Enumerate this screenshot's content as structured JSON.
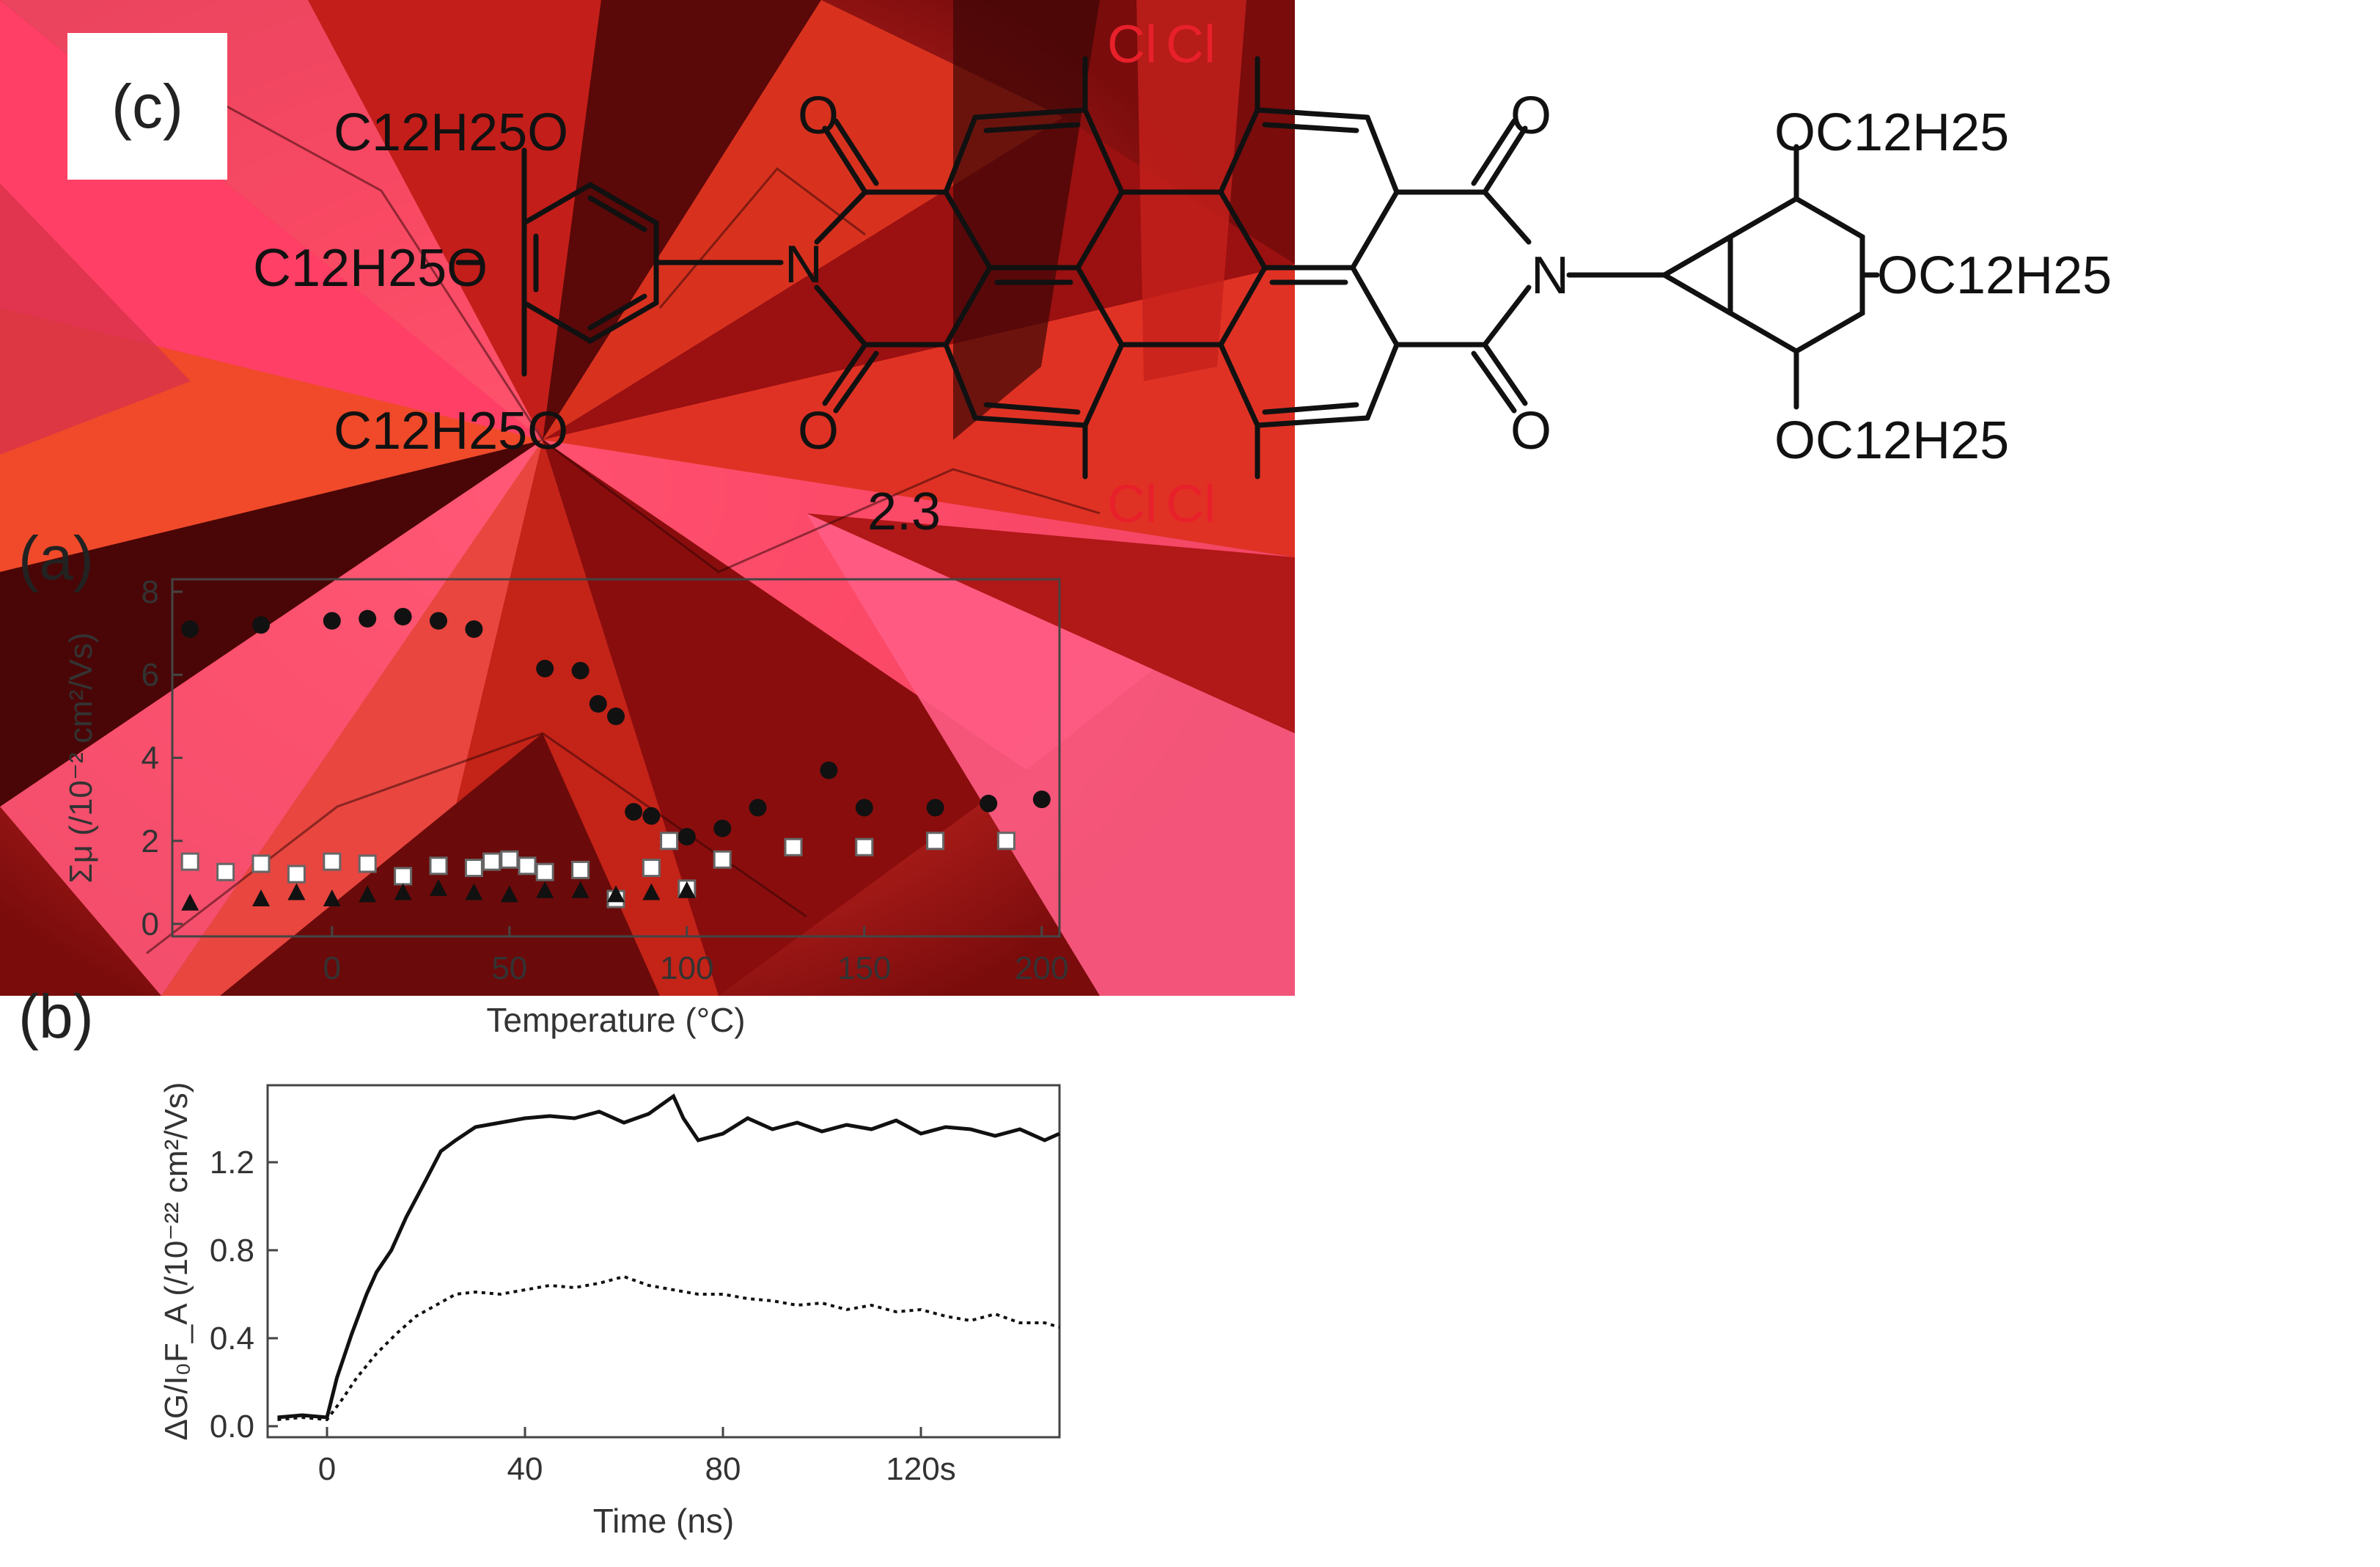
{
  "compound": {
    "label": "2.3",
    "substituents": {
      "left_top": "C12H25O",
      "left_mid": "C12H25O",
      "left_bot": "C12H25O",
      "right_top": "OC12H25",
      "right_mid": "OC12H25",
      "right_bot": "OC12H25"
    },
    "chlorines": [
      "Cl",
      "Cl",
      "Cl",
      "Cl"
    ],
    "imide_N": "N",
    "carbonyl_O": "O",
    "colors": {
      "bonds": "#111111",
      "chlorine": "#e8202a"
    }
  },
  "panel_labels": {
    "a": "(a)",
    "b": "(b)",
    "c": "(c)"
  },
  "chart_data": [
    {
      "id": "a",
      "type": "scatter",
      "title": "",
      "xlabel": "Temperature (°C)",
      "ylabel": "Σμ (/10⁻² cm²/Vs)",
      "xlim": [
        -45,
        205
      ],
      "ylim": [
        -0.3,
        8.3
      ],
      "xticks": [
        0,
        50,
        100,
        150,
        200
      ],
      "yticks": [
        0,
        2,
        4,
        6,
        8
      ],
      "series": [
        {
          "name": "filled circles",
          "marker": "circle-filled",
          "x": [
            -40,
            -20,
            0,
            10,
            20,
            30,
            40,
            60,
            70,
            75,
            80,
            85,
            90,
            100,
            110,
            120,
            140,
            150,
            170,
            185,
            200
          ],
          "y": [
            7.1,
            7.2,
            7.3,
            7.35,
            7.4,
            7.3,
            7.1,
            6.15,
            6.1,
            5.3,
            5.0,
            2.7,
            2.6,
            2.1,
            2.3,
            2.8,
            3.7,
            2.8,
            2.8,
            2.9,
            3.0
          ]
        },
        {
          "name": "open squares",
          "marker": "square-open",
          "x": [
            -40,
            -30,
            -20,
            -10,
            0,
            10,
            20,
            30,
            40,
            45,
            50,
            55,
            60,
            70,
            80,
            90,
            95,
            100,
            110,
            130,
            150,
            170,
            190
          ],
          "y": [
            1.5,
            1.25,
            1.45,
            1.2,
            1.5,
            1.45,
            1.15,
            1.4,
            1.35,
            1.5,
            1.55,
            1.4,
            1.25,
            1.3,
            0.6,
            1.35,
            2.0,
            0.85,
            1.55,
            1.85,
            1.85,
            2.0,
            2.0
          ]
        },
        {
          "name": "filled triangles",
          "marker": "triangle-filled",
          "x": [
            -40,
            -20,
            -10,
            0,
            10,
            20,
            30,
            40,
            50,
            60,
            70,
            80,
            90,
            100
          ],
          "y": [
            0.5,
            0.6,
            0.75,
            0.6,
            0.7,
            0.75,
            0.85,
            0.75,
            0.7,
            0.8,
            0.8,
            0.7,
            0.75,
            0.8
          ]
        }
      ]
    },
    {
      "id": "b",
      "type": "line",
      "title": "",
      "xlabel": "Time (ns)",
      "ylabel": "ΔG/I₀F_A (/10⁻²² cm²/Vs)",
      "xlim": [
        -12,
        148
      ],
      "ylim": [
        -0.05,
        1.55
      ],
      "xticks": [
        0,
        40,
        80,
        120
      ],
      "xtick_labels": [
        "0",
        "40",
        "80",
        "120s"
      ],
      "yticks": [
        0.0,
        0.4,
        0.8,
        1.2
      ],
      "ytick_labels": [
        "0.0",
        "0.4",
        "0.8",
        "1.2"
      ],
      "series": [
        {
          "name": "solid",
          "style": "solid",
          "x": [
            -10,
            -5,
            0,
            2,
            5,
            8,
            10,
            13,
            16,
            20,
            23,
            26,
            30,
            35,
            40,
            45,
            50,
            55,
            60,
            65,
            70,
            72,
            75,
            80,
            85,
            90,
            95,
            100,
            105,
            110,
            115,
            120,
            125,
            130,
            135,
            140,
            145,
            148
          ],
          "y": [
            0.04,
            0.05,
            0.04,
            0.22,
            0.42,
            0.6,
            0.7,
            0.8,
            0.95,
            1.12,
            1.25,
            1.3,
            1.36,
            1.38,
            1.4,
            1.41,
            1.4,
            1.43,
            1.38,
            1.42,
            1.5,
            1.4,
            1.3,
            1.33,
            1.4,
            1.35,
            1.38,
            1.34,
            1.37,
            1.35,
            1.39,
            1.33,
            1.36,
            1.35,
            1.32,
            1.35,
            1.3,
            1.33
          ]
        },
        {
          "name": "dotted",
          "style": "dotted",
          "x": [
            -10,
            -5,
            0,
            3,
            6,
            10,
            14,
            18,
            22,
            26,
            30,
            35,
            40,
            45,
            50,
            55,
            60,
            65,
            70,
            75,
            80,
            85,
            90,
            95,
            100,
            105,
            110,
            115,
            120,
            125,
            130,
            135,
            140,
            145,
            148
          ],
          "y": [
            0.03,
            0.04,
            0.03,
            0.12,
            0.22,
            0.33,
            0.42,
            0.5,
            0.55,
            0.6,
            0.61,
            0.6,
            0.62,
            0.64,
            0.63,
            0.65,
            0.68,
            0.64,
            0.62,
            0.6,
            0.6,
            0.58,
            0.57,
            0.55,
            0.56,
            0.53,
            0.55,
            0.52,
            0.53,
            0.5,
            0.48,
            0.51,
            0.47,
            0.47,
            0.45
          ]
        }
      ]
    }
  ]
}
